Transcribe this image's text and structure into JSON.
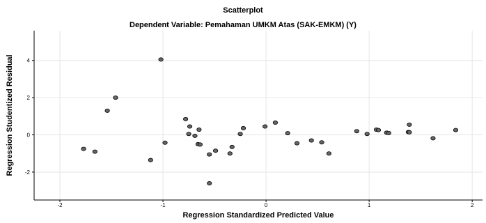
{
  "chart_data": {
    "type": "scatter",
    "title": "Scatterplot",
    "subtitle": "Dependent Variable: Pemahaman UMKM Atas (SAK-EMKM) (Y)",
    "xlabel": "Regression Standardized Predicted Value",
    "ylabel": "Regression Studentized Residual",
    "xlim": [
      -2.25,
      2.1
    ],
    "ylim": [
      -3.5,
      5.6
    ],
    "xticks": [
      -2,
      -1,
      0,
      1,
      2
    ],
    "yticks": [
      -2,
      0,
      2,
      4
    ],
    "grid": "vertical-and-horizontal",
    "colors": {
      "marker_fill": "#666666",
      "marker_stroke": "#000000",
      "grid": "#e6e6e6",
      "axis": "#000000"
    },
    "points": [
      {
        "x": -1.77,
        "y": -0.75
      },
      {
        "x": -1.66,
        "y": -0.9
      },
      {
        "x": -1.54,
        "y": 1.3
      },
      {
        "x": -1.46,
        "y": 2.0
      },
      {
        "x": -1.12,
        "y": -1.35
      },
      {
        "x": -1.02,
        "y": 4.05
      },
      {
        "x": -0.98,
        "y": -0.42
      },
      {
        "x": -0.78,
        "y": 0.85
      },
      {
        "x": -0.74,
        "y": 0.45
      },
      {
        "x": -0.75,
        "y": 0.05
      },
      {
        "x": -0.69,
        "y": -0.05
      },
      {
        "x": -0.65,
        "y": 0.28
      },
      {
        "x": -0.66,
        "y": -0.5
      },
      {
        "x": -0.64,
        "y": -0.52
      },
      {
        "x": -0.55,
        "y": -1.05
      },
      {
        "x": -0.55,
        "y": -2.6
      },
      {
        "x": -0.49,
        "y": -0.85
      },
      {
        "x": -0.35,
        "y": -1.0
      },
      {
        "x": -0.33,
        "y": -0.65
      },
      {
        "x": -0.25,
        "y": 0.05
      },
      {
        "x": -0.22,
        "y": 0.36
      },
      {
        "x": -0.01,
        "y": 0.45
      },
      {
        "x": 0.09,
        "y": 0.66
      },
      {
        "x": 0.21,
        "y": 0.09
      },
      {
        "x": 0.3,
        "y": -0.45
      },
      {
        "x": 0.44,
        "y": -0.3
      },
      {
        "x": 0.54,
        "y": -0.4
      },
      {
        "x": 0.61,
        "y": -1.0
      },
      {
        "x": 0.88,
        "y": 0.2
      },
      {
        "x": 0.98,
        "y": 0.05
      },
      {
        "x": 1.07,
        "y": 0.28
      },
      {
        "x": 1.09,
        "y": 0.26
      },
      {
        "x": 1.17,
        "y": 0.12
      },
      {
        "x": 1.19,
        "y": 0.1
      },
      {
        "x": 1.38,
        "y": 0.15
      },
      {
        "x": 1.39,
        "y": 0.55
      },
      {
        "x": 1.39,
        "y": 0.14
      },
      {
        "x": 1.62,
        "y": -0.18
      },
      {
        "x": 1.84,
        "y": 0.26
      }
    ]
  }
}
